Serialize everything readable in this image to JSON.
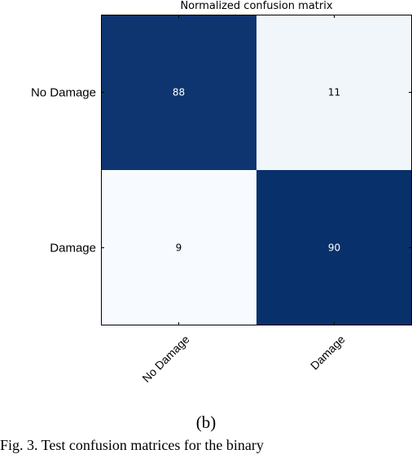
{
  "chart_data": {
    "type": "heatmap",
    "title": "Normalized confusion matrix",
    "row_labels": [
      "No Damage",
      "Damage"
    ],
    "col_labels": [
      "No Damage",
      "Damage"
    ],
    "values": [
      [
        88,
        11
      ],
      [
        9,
        90
      ]
    ],
    "colormap": {
      "low": "#f7fbff",
      "high": "#08306b"
    },
    "grid": false
  },
  "caption": "(b)",
  "footer_text": "Fig. 3. Test confusion matrices for the binary"
}
